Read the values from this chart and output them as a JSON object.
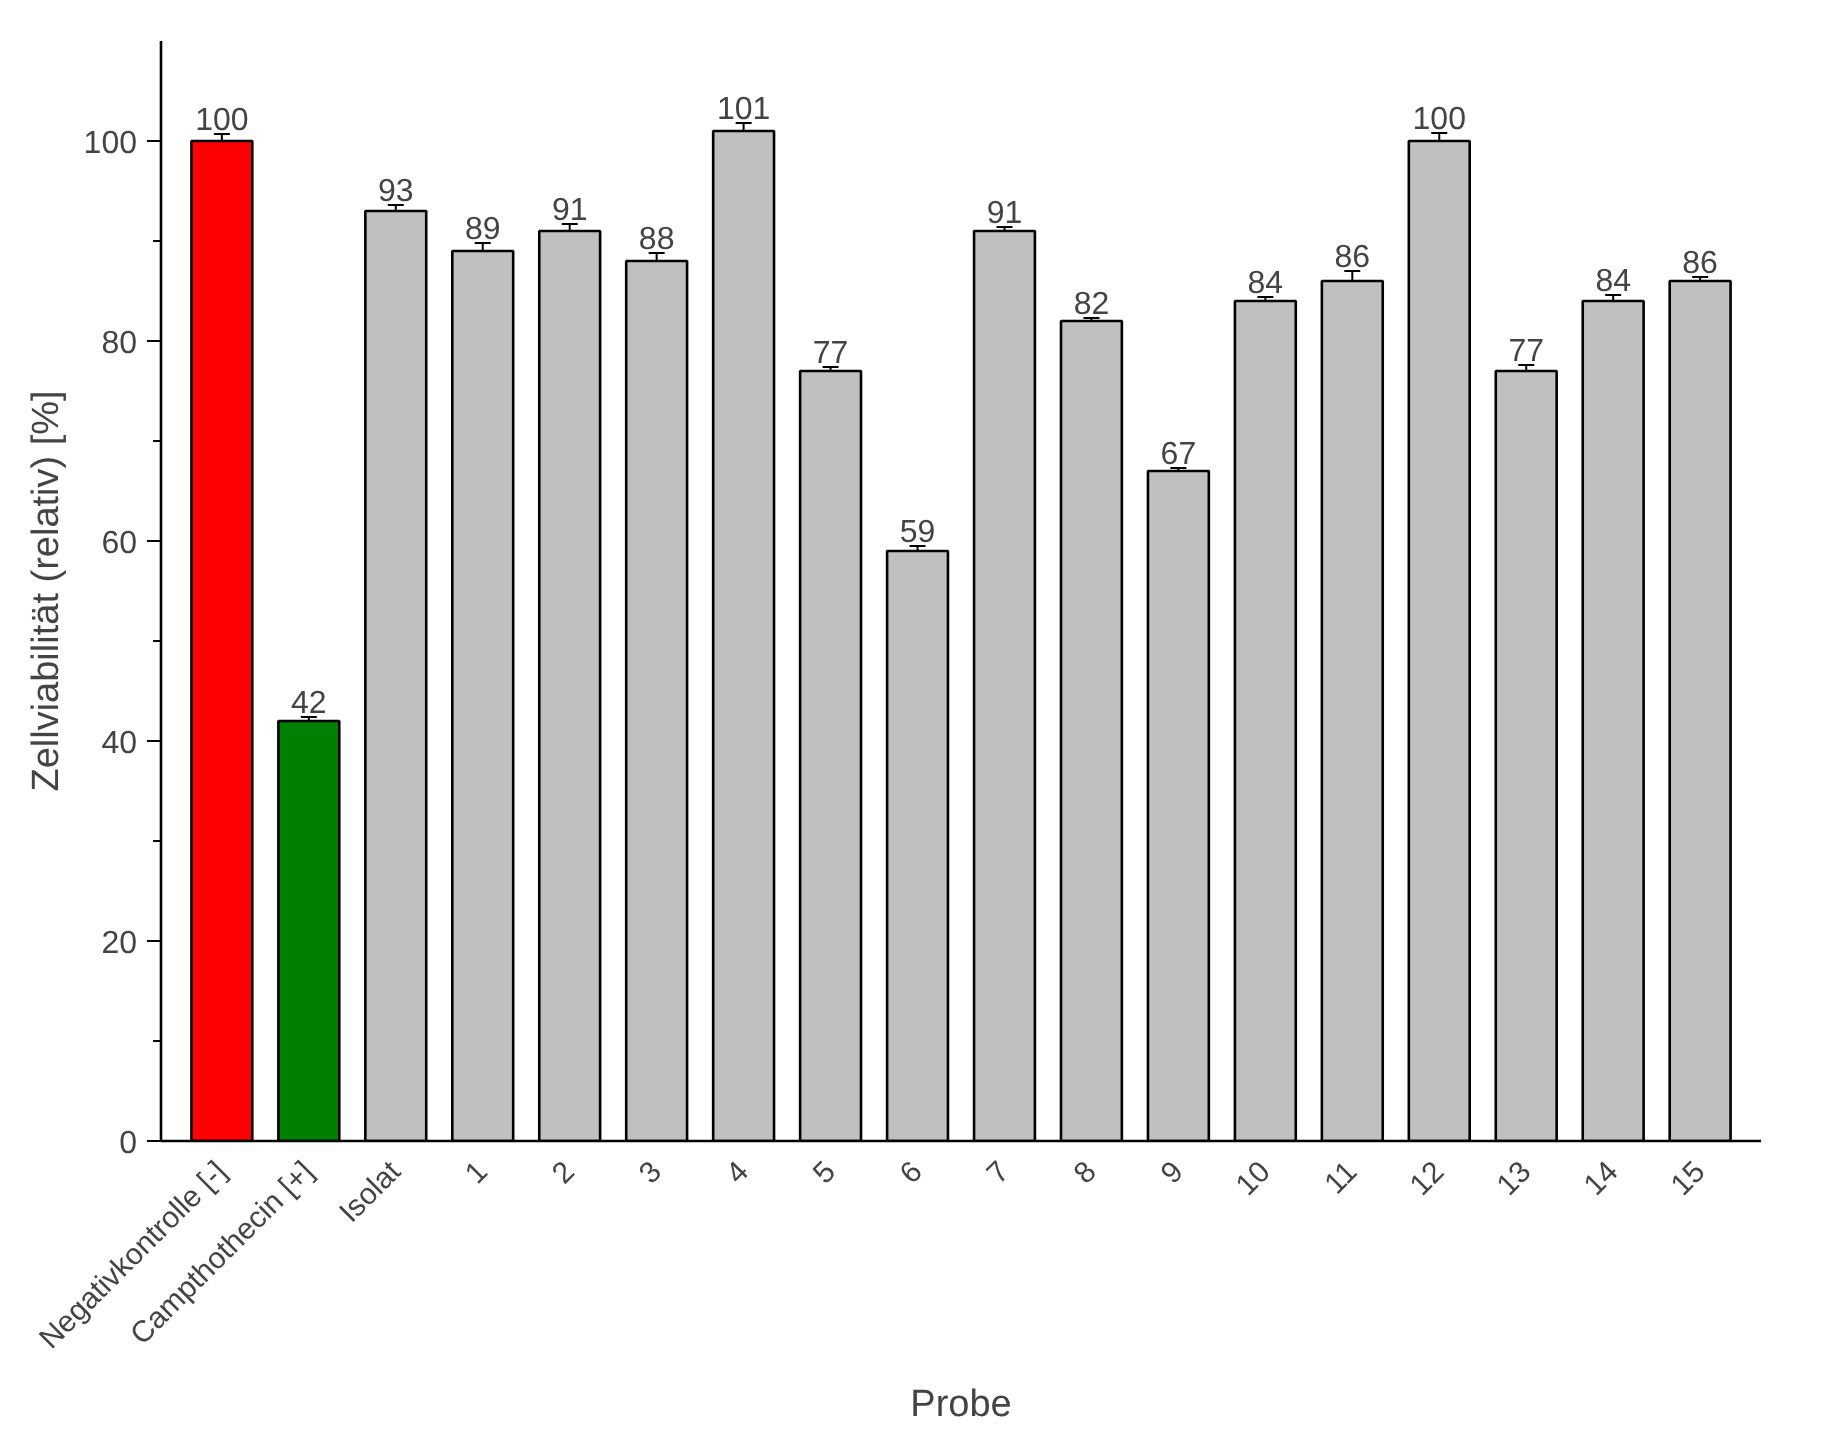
{
  "chart_data": {
    "type": "bar",
    "xlabel": "Probe",
    "ylabel": "Zellviabilität (relativ) [%]",
    "categories": [
      "Negativkontrolle [-]",
      "Campthothecin [+]",
      "Isolat",
      "1",
      "2",
      "3",
      "4",
      "5",
      "6",
      "7",
      "8",
      "9",
      "10",
      "11",
      "12",
      "13",
      "14",
      "15"
    ],
    "values": [
      100,
      42,
      93,
      89,
      91,
      88,
      101,
      77,
      59,
      91,
      82,
      67,
      84,
      86,
      100,
      77,
      84,
      86
    ],
    "errors": [
      0.7,
      0.4,
      0.6,
      0.8,
      0.7,
      0.8,
      0.8,
      0.4,
      0.5,
      0.4,
      0.3,
      0.3,
      0.4,
      1.0,
      0.8,
      0.6,
      0.6,
      0.4
    ],
    "colors": [
      "#ff0000",
      "#008000",
      "#c0c0c0",
      "#c0c0c0",
      "#c0c0c0",
      "#c0c0c0",
      "#c0c0c0",
      "#c0c0c0",
      "#c0c0c0",
      "#c0c0c0",
      "#c0c0c0",
      "#c0c0c0",
      "#c0c0c0",
      "#c0c0c0",
      "#c0c0c0",
      "#c0c0c0",
      "#c0c0c0",
      "#c0c0c0"
    ],
    "ylim": [
      0,
      110
    ],
    "yticks": [
      0,
      20,
      40,
      60,
      80,
      100
    ],
    "data_labels": true,
    "grid": false
  }
}
